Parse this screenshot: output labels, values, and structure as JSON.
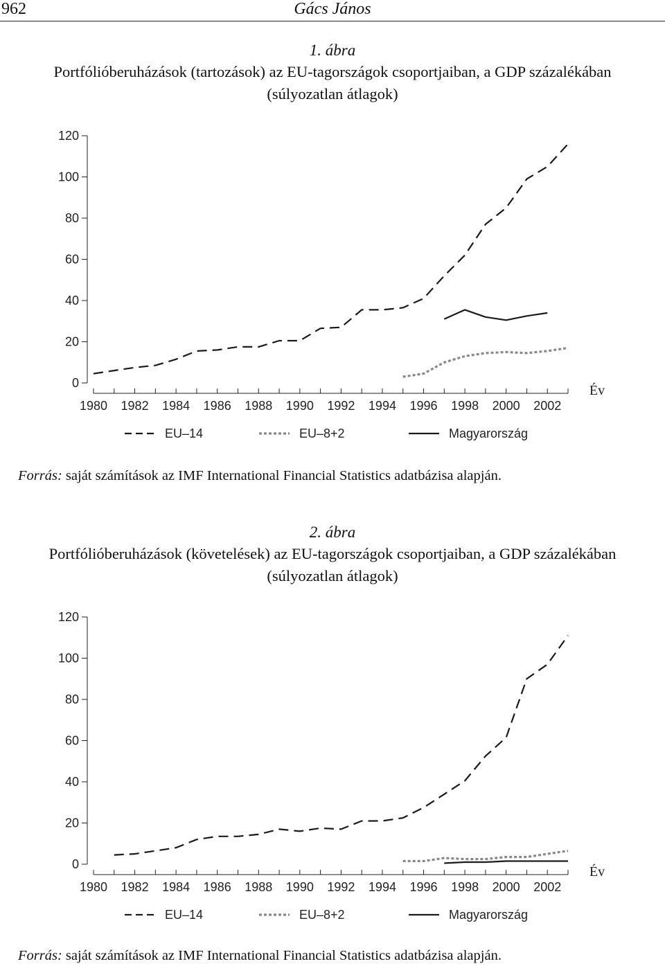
{
  "header": {
    "page_number": "962",
    "author": "Gács János"
  },
  "figures": [
    {
      "number": "1. ábra",
      "title_line1": "Portfólióberuházások (tartozások) az EU-tagországok csoportjaiban, a GDP százalékában",
      "title_line2": "(súlyozatlan átlagok)",
      "source_label": "Forrás:",
      "source_text": " saját számítások az IMF International Financial Statistics adatbázisa alapján."
    },
    {
      "number": "2. ábra",
      "title_line1": "Portfólióberuházások (követelések) az EU-tagországok csoportjaiban, a GDP százalékában",
      "title_line2": "(súlyozatlan átlagok)",
      "source_label": "Forrás:",
      "source_text": " saját számítások az IMF International Financial Statistics adatbázisa alapján."
    }
  ],
  "chart_data": [
    {
      "type": "line",
      "title": "Portfólióberuházások (tartozások) az EU-tagországok csoportjaiban, a GDP százalékában",
      "xlabel": "Év",
      "ylabel": "",
      "xlim": [
        1980,
        2003
      ],
      "ylim": [
        0,
        120
      ],
      "x_ticks": [
        1980,
        1982,
        1984,
        1986,
        1988,
        1990,
        1992,
        1994,
        1996,
        1998,
        2000,
        2002
      ],
      "y_ticks": [
        0,
        20,
        40,
        60,
        80,
        100,
        120
      ],
      "grid": false,
      "legend_position": "bottom",
      "series": [
        {
          "name": "EU–14",
          "style": "dashed",
          "color": "#1a1a1a",
          "x": [
            1980,
            1981,
            1982,
            1983,
            1984,
            1985,
            1986,
            1987,
            1988,
            1989,
            1990,
            1991,
            1992,
            1993,
            1994,
            1995,
            1996,
            1997,
            1998,
            1999,
            2000,
            2001,
            2002,
            2003
          ],
          "values": [
            4.5,
            6,
            7.5,
            8.5,
            11.5,
            15.5,
            16,
            17.5,
            17.5,
            20.5,
            20.5,
            26.5,
            27,
            35.5,
            35.5,
            36.5,
            41,
            52,
            62,
            77,
            85,
            99,
            105,
            116
          ]
        },
        {
          "name": "EU–8+2",
          "style": "dotted",
          "color": "#888888",
          "x": [
            1995,
            1996,
            1997,
            1998,
            1999,
            2000,
            2001,
            2002,
            2003
          ],
          "values": [
            3,
            4.5,
            10,
            13,
            14.5,
            15,
            14.5,
            15.5,
            17
          ]
        },
        {
          "name": "Magyarország",
          "style": "solid",
          "color": "#1a1a1a",
          "x": [
            1997,
            1998,
            1999,
            2000,
            2001,
            2002,
            2003
          ],
          "values": [
            31,
            35.5,
            32,
            30.5,
            32.5,
            34,
            null
          ]
        }
      ]
    },
    {
      "type": "line",
      "title": "Portfólióberuházások (követelések) az EU-tagországok csoportjaiban, a GDP százalékában",
      "xlabel": "Év",
      "ylabel": "",
      "xlim": [
        1980,
        2003
      ],
      "ylim": [
        0,
        120
      ],
      "x_ticks": [
        1980,
        1982,
        1984,
        1986,
        1988,
        1990,
        1992,
        1994,
        1996,
        1998,
        2000,
        2002
      ],
      "y_ticks": [
        0,
        20,
        40,
        60,
        80,
        100,
        120
      ],
      "grid": false,
      "legend_position": "bottom",
      "series": [
        {
          "name": "EU–14",
          "style": "dashed",
          "color": "#1a1a1a",
          "x": [
            1981,
            1982,
            1983,
            1984,
            1985,
            1986,
            1987,
            1988,
            1989,
            1990,
            1991,
            1992,
            1993,
            1994,
            1995,
            1996,
            1997,
            1998,
            1999,
            2000,
            2001,
            2002,
            2003
          ],
          "values": [
            4.5,
            5,
            6.5,
            8,
            12,
            13.5,
            13.5,
            14.5,
            17,
            16,
            17.5,
            17,
            21,
            21,
            22.5,
            27.5,
            34,
            40.5,
            52.5,
            61.5,
            90,
            97,
            111
          ]
        },
        {
          "name": "EU–8+2",
          "style": "dotted",
          "color": "#888888",
          "x": [
            1995,
            1996,
            1997,
            1998,
            1999,
            2000,
            2001,
            2002,
            2003
          ],
          "values": [
            1.5,
            1.5,
            3,
            2.5,
            2.5,
            3.5,
            3.5,
            5,
            6.5
          ]
        },
        {
          "name": "Magyarország",
          "style": "solid",
          "color": "#1a1a1a",
          "x": [
            1997,
            1998,
            1999,
            2000,
            2001,
            2002,
            2003
          ],
          "values": [
            0.5,
            1,
            1,
            1.5,
            1.5,
            1.5,
            1.5
          ]
        }
      ]
    }
  ]
}
